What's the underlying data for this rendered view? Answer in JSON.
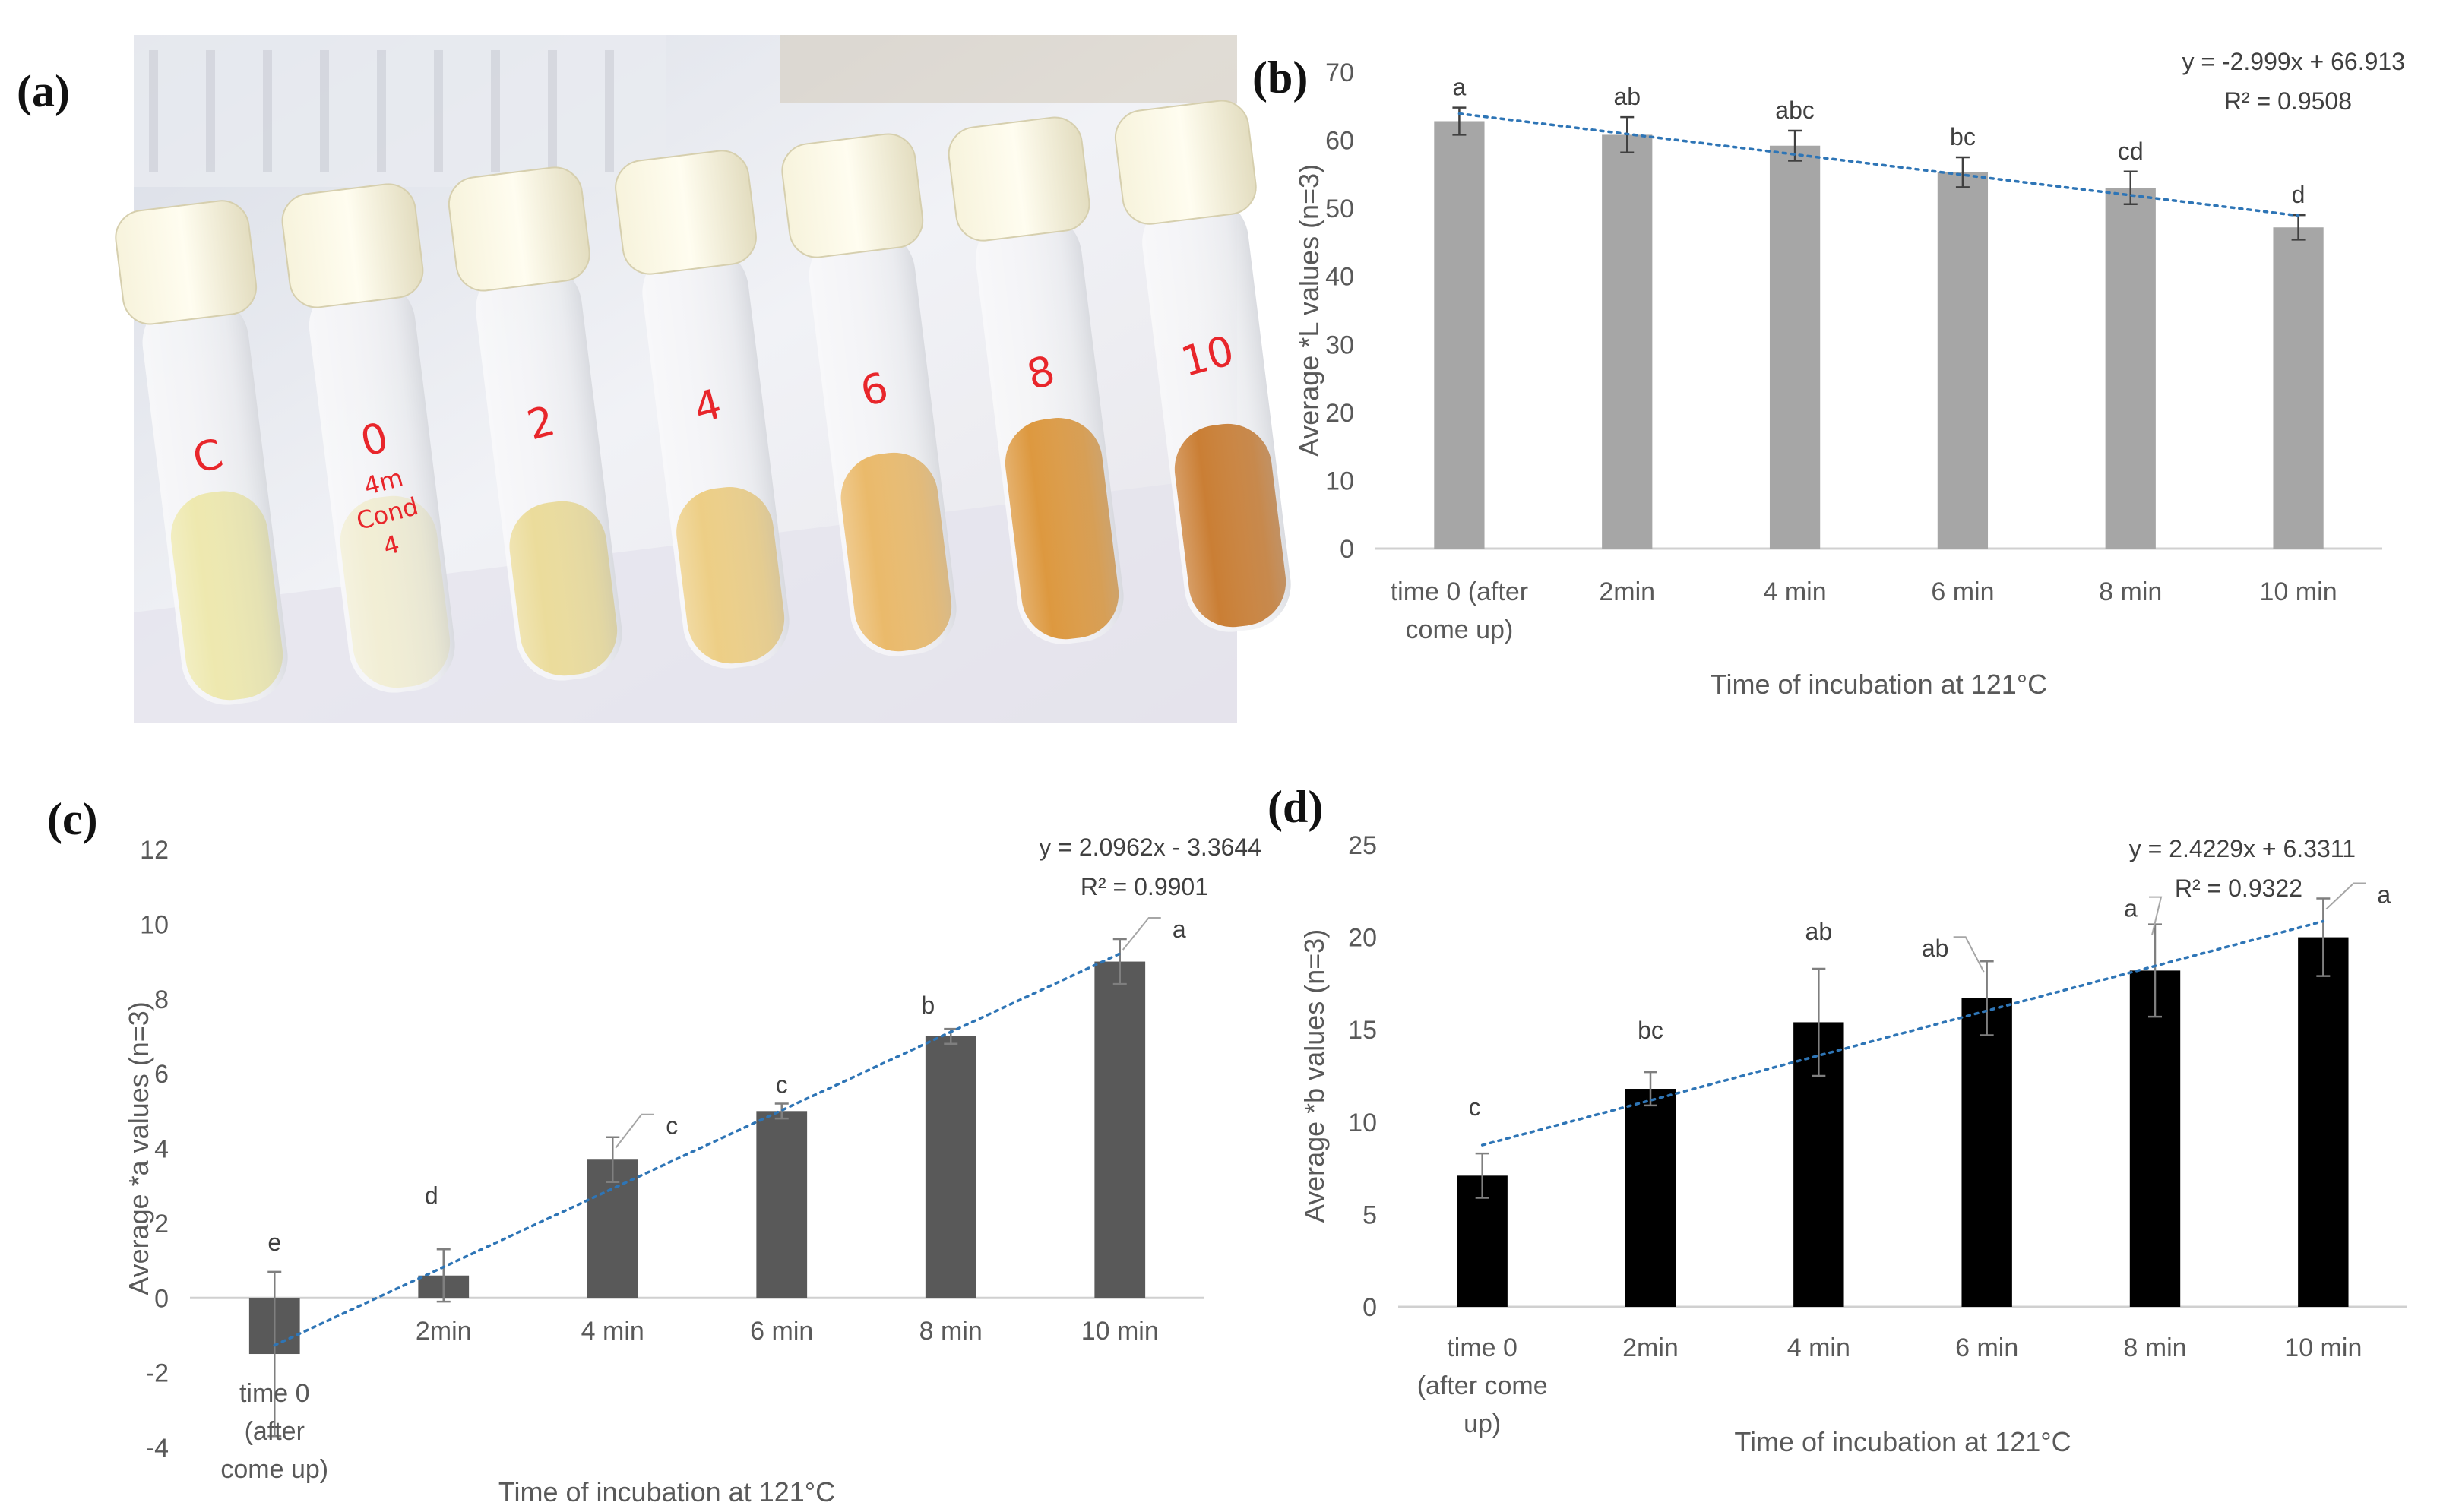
{
  "panel_labels": {
    "a": "(a)",
    "b": "(b)",
    "c": "(c)",
    "d": "(d)"
  },
  "photo": {
    "tubes": [
      {
        "label": "C",
        "content_color": "#ece6a6",
        "content_level": 0.55
      },
      {
        "label": "0",
        "sublabel_1": "4m",
        "sublabel_2": "Cond",
        "sublabel_3": "4",
        "content_color": "#f0ecd0",
        "content_level": 0.5
      },
      {
        "label": "2",
        "content_color": "#e9d890",
        "content_level": 0.45
      },
      {
        "label": "4",
        "content_color": "#ebc978",
        "content_level": 0.45
      },
      {
        "label": "6",
        "content_color": "#e8b25a",
        "content_level": 0.5
      },
      {
        "label": "8",
        "content_color": "#d98d2a",
        "content_level": 0.55
      },
      {
        "label": "10",
        "content_color": "#c4701e",
        "content_level": 0.5
      }
    ]
  },
  "chart_data": [
    {
      "id": "b",
      "type": "bar",
      "categories": [
        "time 0 (after come up)",
        "2min",
        "4 min",
        "6 min",
        "8 min",
        "10 min"
      ],
      "category_lines": [
        [
          "time 0 (after",
          "come up)"
        ],
        [
          "2min"
        ],
        [
          "4 min"
        ],
        [
          "6 min"
        ],
        [
          "8 min"
        ],
        [
          "10 min"
        ]
      ],
      "values": [
        62.8,
        60.8,
        59.2,
        55.3,
        53.0,
        47.2
      ],
      "errors": [
        2.0,
        2.6,
        2.2,
        2.2,
        2.4,
        1.8
      ],
      "letters": [
        "a",
        "ab",
        "abc",
        "bc",
        "cd",
        "d"
      ],
      "bar_color": "#a6a6a6",
      "ylim": [
        0,
        70
      ],
      "yticks": [
        0,
        10,
        20,
        30,
        40,
        50,
        60,
        70
      ],
      "ylabel": "Average *L values (n=3)",
      "xlabel": "Time of incubation at 121°C",
      "trendline": {
        "slope": -2.999,
        "intercept": 66.913,
        "equation": "y = -2.999x + 66.913",
        "r2": "R² = 0.9508",
        "color": "#2e75b6"
      }
    },
    {
      "id": "c",
      "type": "bar",
      "categories": [
        "time 0 (after come up)",
        "2min",
        "4 min",
        "6 min",
        "8 min",
        "10 min"
      ],
      "category_lines": [
        [
          "time 0",
          "(after",
          "come up)"
        ],
        [
          "2min"
        ],
        [
          "4 min"
        ],
        [
          "6 min"
        ],
        [
          "8 min"
        ],
        [
          "10 min"
        ]
      ],
      "values": [
        -1.5,
        0.6,
        3.7,
        5.0,
        7.0,
        9.0
      ],
      "errors": [
        2.2,
        0.7,
        0.6,
        0.2,
        0.2,
        0.6
      ],
      "letters": [
        "e",
        "d",
        "c",
        "c",
        "b",
        "a"
      ],
      "bar_color": "#595959",
      "ylim": [
        -4,
        12
      ],
      "yticks": [
        -4,
        -2,
        0,
        2,
        4,
        6,
        8,
        10,
        12
      ],
      "ylabel": "Average *a values (n=3)",
      "xlabel": "Time of incubation at 121°C",
      "trendline": {
        "slope": 2.0962,
        "intercept": -3.3644,
        "equation": "y = 2.0962x - 3.3644",
        "r2": "R² = 0.9901",
        "color": "#2e75b6"
      }
    },
    {
      "id": "d",
      "type": "bar",
      "categories": [
        "time 0 (after come up)",
        "2min",
        "4 min",
        "6 min",
        "8 min",
        "10 min"
      ],
      "category_lines": [
        [
          "time 0",
          "(after come",
          "up)"
        ],
        [
          "2min"
        ],
        [
          "4 min"
        ],
        [
          "6 min"
        ],
        [
          "8 min"
        ],
        [
          "10 min"
        ]
      ],
      "values": [
        7.1,
        11.8,
        15.4,
        16.7,
        18.2,
        20.0
      ],
      "errors": [
        1.2,
        0.9,
        2.9,
        2.0,
        2.5,
        2.1
      ],
      "letters": [
        "c",
        "bc",
        "ab",
        "ab",
        "a",
        "a"
      ],
      "bar_color": "#000000",
      "ylim": [
        0,
        25
      ],
      "yticks": [
        0,
        5,
        10,
        15,
        20,
        25
      ],
      "ylabel": "Average *b  values (n=3)",
      "xlabel": "Time of incubation at 121°C",
      "trendline": {
        "slope": 2.4229,
        "intercept": 6.3311,
        "equation": "y = 2.4229x + 6.3311",
        "r2": "R² = 0.9322",
        "color": "#2e75b6"
      }
    }
  ]
}
